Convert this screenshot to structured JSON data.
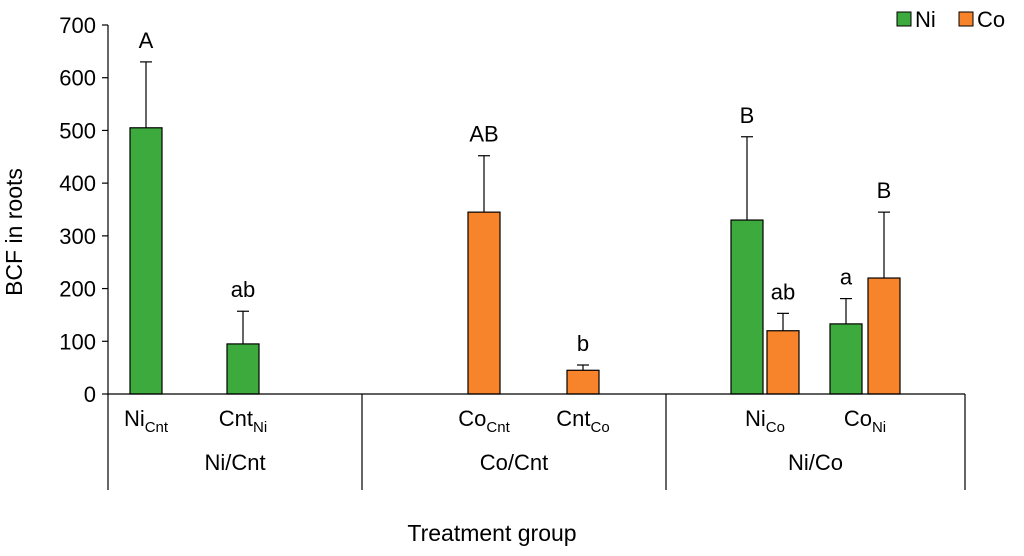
{
  "chart_data": {
    "type": "bar",
    "ylabel": "BCF in roots",
    "xlabel": "Treatment group",
    "ylim": [
      0,
      700
    ],
    "yticks": [
      0,
      100,
      200,
      300,
      400,
      500,
      600,
      700
    ],
    "legend_position": "top-right",
    "series_meta": [
      {
        "name": "Ni",
        "color": "#3daa3d"
      },
      {
        "name": "Co",
        "color": "#f7832a"
      }
    ],
    "groups": [
      {
        "label": "Ni/Cnt",
        "categories": [
          {
            "base": "Ni",
            "sub": "Cnt",
            "series": "Ni",
            "value": 505,
            "error": 125,
            "sig": "A"
          },
          {
            "base": "Cnt",
            "sub": "Ni",
            "series": "Ni",
            "value": 95,
            "error": 62,
            "sig": "ab"
          }
        ]
      },
      {
        "label": "Co/Cnt",
        "categories": [
          {
            "base": "Co",
            "sub": "Cnt",
            "series": "Co",
            "value": 345,
            "error": 107,
            "sig": "AB"
          },
          {
            "base": "Cnt",
            "sub": "Co",
            "series": "Co",
            "value": 45,
            "error": 10,
            "sig": "b"
          }
        ]
      },
      {
        "label": "Ni/Co",
        "categories": [
          {
            "base": "Ni",
            "sub": "Co",
            "series": "Ni",
            "value": 330,
            "error": 158,
            "sig": "B"
          },
          {
            "base": "Ni",
            "sub": "Co",
            "series": "Co",
            "value": 120,
            "error": 33,
            "sig": "ab"
          },
          {
            "base": "Co",
            "sub": "Ni",
            "series": "Ni",
            "value": 133,
            "error": 48,
            "sig": "a"
          },
          {
            "base": "Co",
            "sub": "Ni",
            "series": "Co",
            "value": 220,
            "error": 125,
            "sig": "B"
          }
        ]
      }
    ]
  }
}
